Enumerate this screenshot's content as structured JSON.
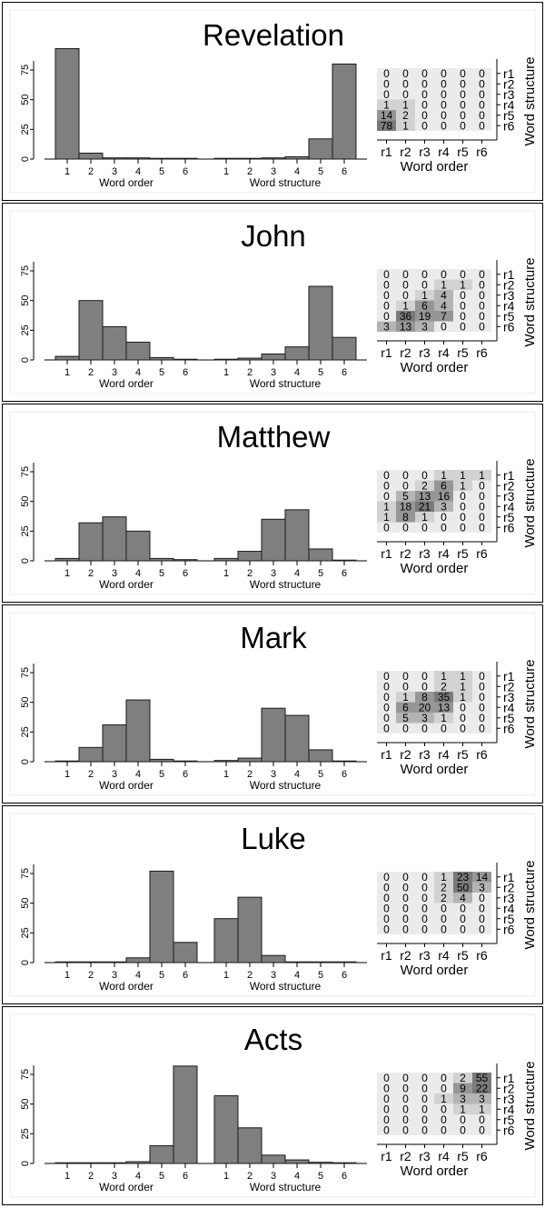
{
  "chart_data": [
    {
      "type": "bar",
      "title": "Revelation",
      "ylim": [
        0,
        95
      ],
      "yticks": [
        0,
        25,
        50,
        75
      ],
      "word_order": {
        "xlabel": "Word order",
        "categories": [
          "1",
          "2",
          "3",
          "4",
          "5",
          "6"
        ],
        "values": [
          93,
          5,
          1,
          1,
          0,
          0
        ]
      },
      "word_structure": {
        "xlabel": "Word structure",
        "categories": [
          "1",
          "2",
          "3",
          "4",
          "5",
          "6"
        ],
        "values": [
          0,
          0.5,
          1,
          2,
          17,
          80
        ]
      },
      "heatmap": {
        "type": "heatmap",
        "xlabel": "Word order",
        "ylabel": "Word structure",
        "xcategories": [
          "r1",
          "r2",
          "r3",
          "r4",
          "r5",
          "r6"
        ],
        "ycategories": [
          "r1",
          "r2",
          "r3",
          "r4",
          "r5",
          "r6"
        ],
        "values": [
          [
            0,
            0,
            0,
            0,
            0,
            0
          ],
          [
            0,
            0,
            0,
            0,
            0,
            0
          ],
          [
            0,
            0,
            0,
            0,
            0,
            0
          ],
          [
            1,
            1,
            0,
            0,
            0,
            0
          ],
          [
            14,
            2,
            0,
            0,
            0,
            0
          ],
          [
            78,
            1,
            0,
            0,
            0,
            0
          ]
        ]
      }
    },
    {
      "type": "bar",
      "title": "John",
      "ylim": [
        0,
        80
      ],
      "yticks": [
        0,
        25,
        50,
        75
      ],
      "word_order": {
        "xlabel": "Word order",
        "categories": [
          "1",
          "2",
          "3",
          "4",
          "5",
          "6"
        ],
        "values": [
          3,
          50,
          28,
          15,
          2,
          0.5
        ]
      },
      "word_structure": {
        "xlabel": "Word structure",
        "categories": [
          "1",
          "2",
          "3",
          "4",
          "5",
          "6"
        ],
        "values": [
          0.5,
          1.5,
          5,
          11,
          62,
          19
        ]
      },
      "heatmap": {
        "type": "heatmap",
        "xlabel": "Word order",
        "ylabel": "Word structure",
        "xcategories": [
          "r1",
          "r2",
          "r3",
          "r4",
          "r5",
          "r6"
        ],
        "ycategories": [
          "r1",
          "r2",
          "r3",
          "r4",
          "r5",
          "r6"
        ],
        "values": [
          [
            0,
            0,
            0,
            0,
            0,
            0
          ],
          [
            0,
            0,
            0,
            1,
            1,
            0
          ],
          [
            0,
            0,
            1,
            4,
            0,
            0
          ],
          [
            0,
            1,
            6,
            4,
            0,
            0
          ],
          [
            0,
            36,
            19,
            7,
            0,
            0
          ],
          [
            3,
            13,
            3,
            0,
            0,
            0
          ]
        ]
      }
    },
    {
      "type": "bar",
      "title": "Matthew",
      "ylim": [
        0,
        80
      ],
      "yticks": [
        0,
        25,
        50,
        75
      ],
      "word_order": {
        "xlabel": "Word order",
        "categories": [
          "1",
          "2",
          "3",
          "4",
          "5",
          "6"
        ],
        "values": [
          2,
          32,
          37,
          25,
          2,
          1
        ]
      },
      "word_structure": {
        "xlabel": "Word structure",
        "categories": [
          "1",
          "2",
          "3",
          "4",
          "5",
          "6"
        ],
        "values": [
          2,
          8,
          35,
          43,
          10,
          0
        ]
      },
      "heatmap": {
        "type": "heatmap",
        "xlabel": "Word order",
        "ylabel": "Word structure",
        "xcategories": [
          "r1",
          "r2",
          "r3",
          "r4",
          "r5",
          "r6"
        ],
        "ycategories": [
          "r1",
          "r2",
          "r3",
          "r4",
          "r5",
          "r6"
        ],
        "values": [
          [
            0,
            0,
            0,
            1,
            1,
            1
          ],
          [
            0,
            0,
            2,
            6,
            1,
            0
          ],
          [
            0,
            5,
            13,
            16,
            0,
            0
          ],
          [
            1,
            18,
            21,
            3,
            0,
            0
          ],
          [
            1,
            8,
            1,
            0,
            0,
            0
          ],
          [
            0,
            0,
            0,
            0,
            0,
            0
          ]
        ]
      }
    },
    {
      "type": "bar",
      "title": "Mark",
      "ylim": [
        0,
        80
      ],
      "yticks": [
        0,
        25,
        50,
        75
      ],
      "word_order": {
        "xlabel": "Word order",
        "categories": [
          "1",
          "2",
          "3",
          "4",
          "5",
          "6"
        ],
        "values": [
          0.5,
          12,
          31,
          52,
          2,
          0.5
        ]
      },
      "word_structure": {
        "xlabel": "Word structure",
        "categories": [
          "1",
          "2",
          "3",
          "4",
          "5",
          "6"
        ],
        "values": [
          1,
          3,
          45,
          39,
          10,
          0.5
        ]
      },
      "heatmap": {
        "type": "heatmap",
        "xlabel": "Word order",
        "ylabel": "Word structure",
        "xcategories": [
          "r1",
          "r2",
          "r3",
          "r4",
          "r5",
          "r6"
        ],
        "ycategories": [
          "r1",
          "r2",
          "r3",
          "r4",
          "r5",
          "r6"
        ],
        "values": [
          [
            0,
            0,
            0,
            1,
            1,
            0
          ],
          [
            0,
            0,
            0,
            2,
            1,
            0
          ],
          [
            0,
            1,
            8,
            35,
            1,
            0
          ],
          [
            0,
            6,
            20,
            13,
            0,
            0
          ],
          [
            0,
            5,
            3,
            1,
            0,
            0
          ],
          [
            0,
            0,
            0,
            0,
            0,
            0
          ]
        ]
      }
    },
    {
      "type": "bar",
      "title": "Luke",
      "ylim": [
        0,
        80
      ],
      "yticks": [
        0,
        25,
        50,
        75
      ],
      "word_order": {
        "xlabel": "Word order",
        "categories": [
          "1",
          "2",
          "3",
          "4",
          "5",
          "6"
        ],
        "values": [
          0,
          0,
          0.5,
          4,
          77,
          17
        ]
      },
      "word_structure": {
        "xlabel": "Word structure",
        "categories": [
          "1",
          "2",
          "3",
          "4",
          "5",
          "6"
        ],
        "values": [
          37,
          55,
          6,
          0.5,
          0,
          0
        ]
      },
      "heatmap": {
        "type": "heatmap",
        "xlabel": "Word order",
        "ylabel": "Word structure",
        "xcategories": [
          "r1",
          "r2",
          "r3",
          "r4",
          "r5",
          "r6"
        ],
        "ycategories": [
          "r1",
          "r2",
          "r3",
          "r4",
          "r5",
          "r6"
        ],
        "values": [
          [
            0,
            0,
            0,
            1,
            23,
            14
          ],
          [
            0,
            0,
            0,
            2,
            50,
            3
          ],
          [
            0,
            0,
            0,
            2,
            4,
            0
          ],
          [
            0,
            0,
            0,
            0,
            0,
            0
          ],
          [
            0,
            0,
            0,
            0,
            0,
            0
          ],
          [
            0,
            0,
            0,
            0,
            0,
            0
          ]
        ]
      }
    },
    {
      "type": "bar",
      "title": "Acts",
      "ylim": [
        0,
        85
      ],
      "yticks": [
        0,
        25,
        50,
        75
      ],
      "word_order": {
        "xlabel": "Word order",
        "categories": [
          "1",
          "2",
          "3",
          "4",
          "5",
          "6"
        ],
        "values": [
          0,
          0,
          0.5,
          1.5,
          15,
          82
        ]
      },
      "word_structure": {
        "xlabel": "Word structure",
        "categories": [
          "1",
          "2",
          "3",
          "4",
          "5",
          "6"
        ],
        "values": [
          57,
          30,
          7,
          3,
          1,
          0.5
        ]
      },
      "heatmap": {
        "type": "heatmap",
        "xlabel": "Word order",
        "ylabel": "Word structure",
        "xcategories": [
          "r1",
          "r2",
          "r3",
          "r4",
          "r5",
          "r6"
        ],
        "ycategories": [
          "r1",
          "r2",
          "r3",
          "r4",
          "r5",
          "r6"
        ],
        "values": [
          [
            0,
            0,
            0,
            0,
            2,
            55
          ],
          [
            0,
            0,
            0,
            0,
            9,
            22
          ],
          [
            0,
            0,
            0,
            1,
            3,
            3
          ],
          [
            0,
            0,
            0,
            0,
            1,
            1
          ],
          [
            0,
            0,
            0,
            0,
            0,
            0
          ],
          [
            0,
            0,
            0,
            0,
            0,
            0
          ]
        ]
      }
    }
  ],
  "colors": {
    "bar_fill": "#7f7f7f",
    "bar_stroke": "#1a1a1a",
    "plot_region_border": "#e6ecf0",
    "heatmap_shades": [
      "#ebebeb",
      "#d2d2d2",
      "#b4b4b4",
      "#969696",
      "#7a7a7a"
    ]
  }
}
